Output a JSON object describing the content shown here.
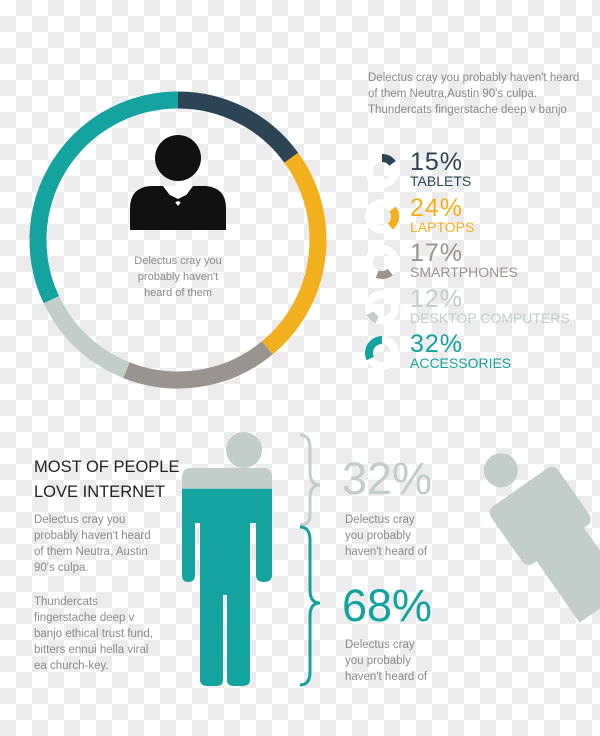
{
  "colors": {
    "navy": "#2c4453",
    "yellow": "#f2b01e",
    "gray": "#9a9490",
    "lightgray": "#c3ceca",
    "teal": "#14a39f",
    "black": "#111111"
  },
  "donut": {
    "center_text": "Delectus cray you probably haven't heard of them",
    "icon": "businessman-icon"
  },
  "intro_text": "Delectus cray you probably haven't heard of them Neutra,Austin 90's culpa. Thundercats fingerstache deep v banjo",
  "chart_data": {
    "type": "pie",
    "categories": [
      "TABLETS",
      "LAPTOPS",
      "SMARTPHONES",
      "DESKTOP COMPUTERS",
      "ACCESSORIES"
    ],
    "values": [
      15,
      24,
      17,
      12,
      32
    ],
    "labels": [
      "15%",
      "24%",
      "17%",
      "12%",
      "32%"
    ],
    "colors": [
      "#2c4453",
      "#f2b01e",
      "#9a9490",
      "#c3ceca",
      "#14a39f"
    ],
    "style": "donut"
  },
  "internet": {
    "title_line1": "MOST OF PEOPLE",
    "title_line2": "LOVE INTERNET",
    "para1": "Delectus cray you probably haven't heard of them Neutra, Austin 90's culpa.",
    "para2": "Thundercats fingerstache deep v banjo ethical trust fund, bitters ennui hella viral ea church-key.",
    "stats": [
      {
        "value": "32%",
        "text": "Delectus cray you probably haven't heard of",
        "fraction": 0.32
      },
      {
        "value": "68%",
        "text": "Delectus cray you probably haven't heard of",
        "fraction": 0.68
      }
    ]
  }
}
